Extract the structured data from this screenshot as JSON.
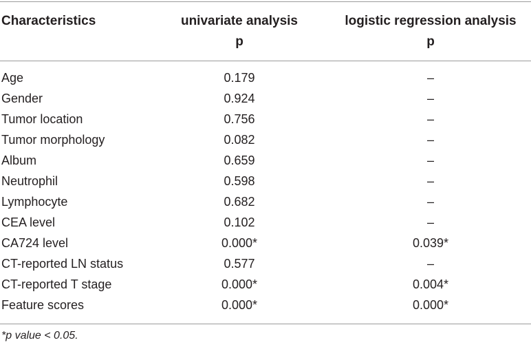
{
  "header": {
    "col1": "Characteristics",
    "col2_line1": "univariate analysis",
    "col2_line2": "p",
    "col3_line1": "logistic regression analysis",
    "col3_line2": "p"
  },
  "rows": [
    {
      "name": "Age",
      "univariate": "0.179",
      "logistic": "–"
    },
    {
      "name": "Gender",
      "univariate": "0.924",
      "logistic": "–"
    },
    {
      "name": "Tumor location",
      "univariate": "0.756",
      "logistic": "–"
    },
    {
      "name": "Tumor morphology",
      "univariate": "0.082",
      "logistic": "–"
    },
    {
      "name": "Album",
      "univariate": "0.659",
      "logistic": "–"
    },
    {
      "name": "Neutrophil",
      "univariate": "0.598",
      "logistic": "–"
    },
    {
      "name": "Lymphocyte",
      "univariate": "0.682",
      "logistic": "–"
    },
    {
      "name": "CEA level",
      "univariate": "0.102",
      "logistic": "–"
    },
    {
      "name": "CA724 level",
      "univariate": "0.000*",
      "logistic": "0.039*"
    },
    {
      "name": "CT-reported LN status",
      "univariate": "0.577",
      "logistic": "–"
    },
    {
      "name": "CT-reported T stage",
      "univariate": "0.000*",
      "logistic": "0.004*"
    },
    {
      "name": "Feature scores",
      "univariate": "0.000*",
      "logistic": "0.000*"
    }
  ],
  "footnote": "*p value < 0.05."
}
